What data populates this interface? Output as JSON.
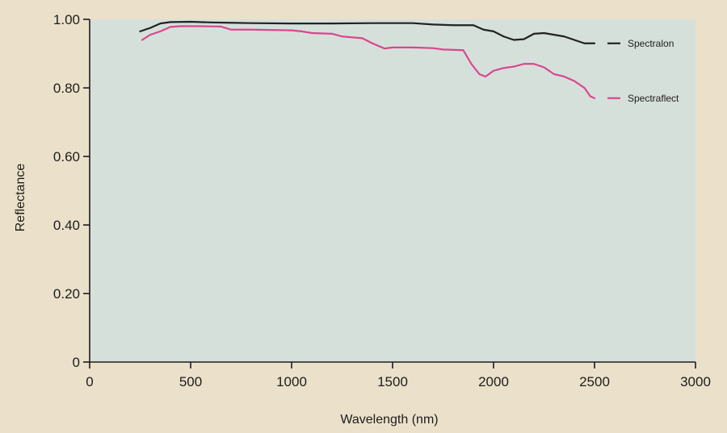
{
  "colors": {
    "page_background": "#ebe0c9",
    "plot_background": "#d6e0da",
    "axis": "#1d1d1d"
  },
  "chart_data": {
    "type": "line",
    "title": "",
    "xlabel": "Wavelength (nm)",
    "ylabel": "Reflectance",
    "xlim": [
      0,
      3000
    ],
    "ylim": [
      0,
      1.0
    ],
    "x_ticks": [
      0,
      500,
      1000,
      1500,
      2000,
      2500,
      3000
    ],
    "x_tick_labels": [
      "0",
      "500",
      "1000",
      "1500",
      "2000",
      "2500",
      "3000"
    ],
    "y_ticks": [
      0,
      0.2,
      0.4,
      0.6,
      0.8,
      1.0
    ],
    "y_tick_labels": [
      "0",
      "0.20",
      "0.40",
      "0.60",
      "0.80",
      "1.00"
    ],
    "grid": false,
    "legend": "right",
    "series": [
      {
        "name": "Spectralon",
        "color": "#222222",
        "points": [
          [
            250,
            0.965
          ],
          [
            300,
            0.975
          ],
          [
            350,
            0.988
          ],
          [
            400,
            0.992
          ],
          [
            500,
            0.993
          ],
          [
            600,
            0.991
          ],
          [
            700,
            0.99
          ],
          [
            800,
            0.989
          ],
          [
            1000,
            0.988
          ],
          [
            1200,
            0.988
          ],
          [
            1400,
            0.989
          ],
          [
            1600,
            0.989
          ],
          [
            1700,
            0.985
          ],
          [
            1800,
            0.983
          ],
          [
            1900,
            0.983
          ],
          [
            1950,
            0.97
          ],
          [
            2000,
            0.965
          ],
          [
            2050,
            0.95
          ],
          [
            2100,
            0.94
          ],
          [
            2150,
            0.942
          ],
          [
            2200,
            0.958
          ],
          [
            2250,
            0.96
          ],
          [
            2300,
            0.955
          ],
          [
            2350,
            0.95
          ],
          [
            2400,
            0.94
          ],
          [
            2450,
            0.93
          ],
          [
            2500,
            0.93
          ]
        ]
      },
      {
        "name": "Spectraflect",
        "color": "#d8478f",
        "points": [
          [
            260,
            0.94
          ],
          [
            300,
            0.955
          ],
          [
            350,
            0.965
          ],
          [
            400,
            0.978
          ],
          [
            450,
            0.98
          ],
          [
            550,
            0.98
          ],
          [
            650,
            0.979
          ],
          [
            700,
            0.97
          ],
          [
            800,
            0.97
          ],
          [
            1000,
            0.968
          ],
          [
            1050,
            0.965
          ],
          [
            1100,
            0.96
          ],
          [
            1200,
            0.958
          ],
          [
            1250,
            0.95
          ],
          [
            1350,
            0.945
          ],
          [
            1400,
            0.93
          ],
          [
            1460,
            0.915
          ],
          [
            1500,
            0.918
          ],
          [
            1600,
            0.918
          ],
          [
            1700,
            0.916
          ],
          [
            1750,
            0.912
          ],
          [
            1850,
            0.91
          ],
          [
            1890,
            0.87
          ],
          [
            1930,
            0.84
          ],
          [
            1960,
            0.833
          ],
          [
            2000,
            0.85
          ],
          [
            2050,
            0.858
          ],
          [
            2100,
            0.862
          ],
          [
            2150,
            0.87
          ],
          [
            2200,
            0.87
          ],
          [
            2250,
            0.86
          ],
          [
            2300,
            0.84
          ],
          [
            2350,
            0.833
          ],
          [
            2400,
            0.82
          ],
          [
            2450,
            0.8
          ],
          [
            2480,
            0.775
          ],
          [
            2500,
            0.77
          ]
        ]
      }
    ]
  }
}
